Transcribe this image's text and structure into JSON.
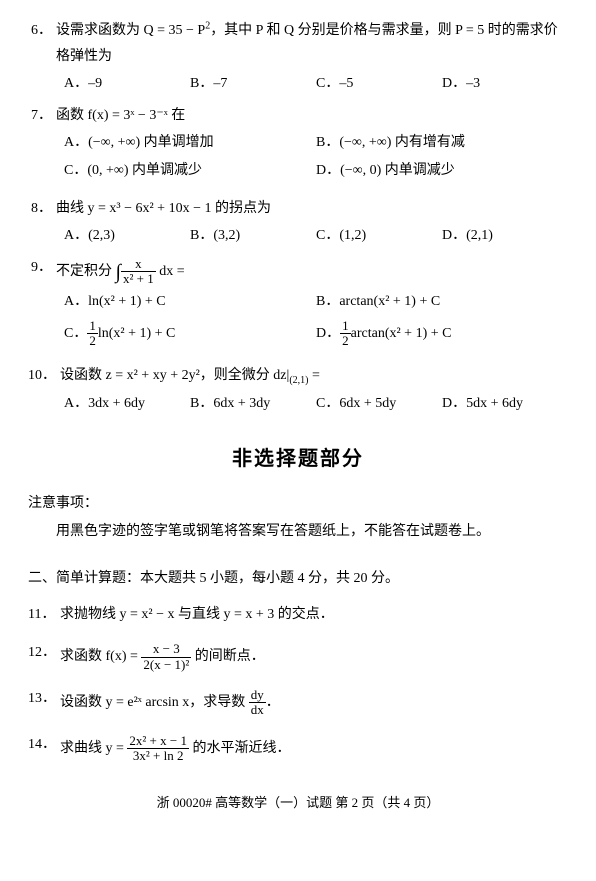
{
  "q6": {
    "num": "6．",
    "stem_a": "设需求函数为 Q = 35 − P",
    "stem_b": "，其中 P 和 Q 分别是价格与需求量，则 P = 5 时的需求价",
    "stem_c": "格弹性为",
    "A": "A．–9",
    "B": "B．–7",
    "C": "C．–5",
    "D": "D．–3"
  },
  "q7": {
    "num": "7．",
    "stem": "函数 f(x) = 3ˣ − 3⁻ˣ 在",
    "A": "A．(−∞, +∞) 内单调增加",
    "B": "B．(−∞, +∞) 内有增有减",
    "C": "C．(0, +∞) 内单调减少",
    "D": "D．(−∞, 0) 内单调减少"
  },
  "q8": {
    "num": "8．",
    "stem": "曲线 y = x³ − 6x² + 10x − 1 的拐点为",
    "A": "A．(2,3)",
    "B": "B．(3,2)",
    "C": "C．(1,2)",
    "D": "D．(2,1)"
  },
  "q9": {
    "num": "9．",
    "stem_a": "不定积分 ",
    "frac_n": "x",
    "frac_d": "x² + 1",
    "stem_b": " dx =",
    "A": "A．ln(x² + 1) + C",
    "B": "B．arctan(x² + 1) + C",
    "C_pre": "C．",
    "C_fn": "1",
    "C_fd": "2",
    "C_post": "ln(x² + 1) + C",
    "D_pre": "D．",
    "D_fn": "1",
    "D_fd": "2",
    "D_post": "arctan(x² + 1) + C"
  },
  "q10": {
    "num": "10．",
    "stem": "设函数 z = x² + xy + 2y²，则全微分 dz|",
    "sub": "(2,1)",
    "stem_b": " =",
    "A": "A．3dx + 6dy",
    "B": "B．6dx + 3dy",
    "C": "C．6dx + 5dy",
    "D": "D．5dx + 6dy"
  },
  "section_title": "非选择题部分",
  "note_head": "注意事项：",
  "note_body": "用黑色字迹的签字笔或钢笔将答案写在答题纸上，不能答在试题卷上。",
  "part2_head": "二、简单计算题：本大题共 5 小题，每小题 4 分，共 20 分。",
  "q11": {
    "num": "11．",
    "text": "求抛物线 y = x² − x 与直线 y = x + 3 的交点．"
  },
  "q12": {
    "num": "12．",
    "pre": "求函数 f(x) = ",
    "fn": "x − 3",
    "fd": "2(x − 1)²",
    "post": " 的间断点．"
  },
  "q13": {
    "num": "13．",
    "pre": "设函数 y = e²ˣ arcsin x，求导数 ",
    "fn": "dy",
    "fd": "dx",
    "post": "．"
  },
  "q14": {
    "num": "14．",
    "pre": "求曲线 y = ",
    "fn": "2x² + x − 1",
    "fd": "3x² + ln 2",
    "post": " 的水平渐近线．"
  },
  "footer": "浙 00020# 高等数学（一）试题 第 2 页（共 4 页）"
}
